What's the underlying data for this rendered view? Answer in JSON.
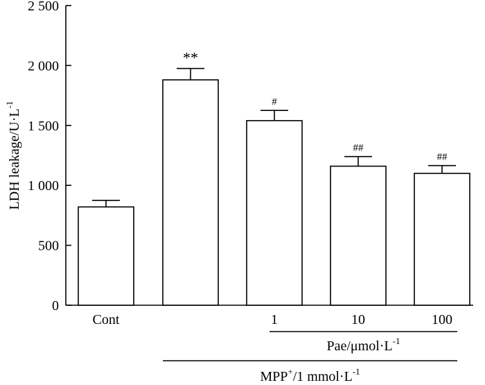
{
  "chart_data": {
    "type": "bar",
    "categories": [
      "Cont",
      "",
      "1",
      "10",
      "100"
    ],
    "values": [
      820,
      1880,
      1540,
      1160,
      1100
    ],
    "errors": [
      55,
      95,
      85,
      80,
      65
    ],
    "significance": [
      "",
      "**",
      "#",
      "##",
      "##"
    ],
    "ylim": [
      0,
      2500
    ],
    "yticks": [
      0,
      500,
      1000,
      1500,
      2000,
      2500
    ],
    "ytick_labels": [
      "0",
      "500",
      "1 000",
      "1 500",
      "2 000",
      "2 500"
    ],
    "ylabel": {
      "text": "LDH leakage/U·L",
      "sup": "-1"
    },
    "xlabel": "",
    "groups": [
      {
        "label": "Pae/μmol·L",
        "sup": "-1",
        "from": 2,
        "to": 4
      },
      {
        "label": "MPP",
        "label_sup": "+",
        "label_rest": "/1 mmol·L",
        "sup": "-1",
        "from": 1,
        "to": 4
      }
    ],
    "grid": false
  }
}
